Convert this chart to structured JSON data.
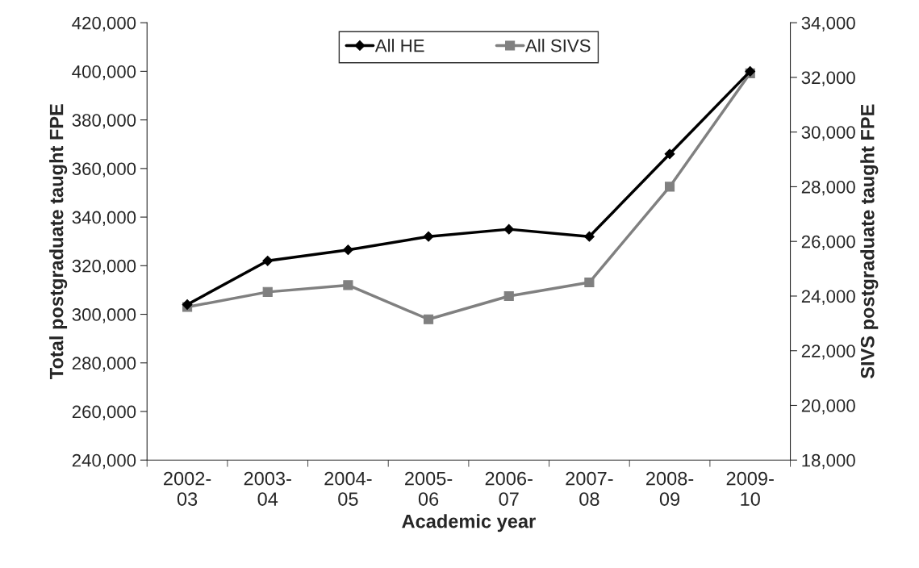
{
  "chart_data": {
    "type": "line",
    "xlabel": "Academic year",
    "ylabel": "Total postgraduate taught FPE",
    "y2label": "SIVS postgraduate taught FPE",
    "categories": [
      "2002-\n03",
      "2003-\n04",
      "2004-\n05",
      "2005-\n06",
      "2006-\n07",
      "2007-\n08",
      "2008-\n09",
      "2009-\n10"
    ],
    "series": [
      {
        "name": "All HE",
        "color": "#000000",
        "marker": "diamond",
        "values": [
          304000,
          322000,
          326500,
          332000,
          335000,
          332000,
          366000,
          400000
        ]
      },
      {
        "name": "All SIVS",
        "color": "#808080",
        "marker": "square",
        "axis": "y2",
        "values": [
          23600,
          24150,
          24400,
          23150,
          24000,
          24500,
          28000,
          32150
        ]
      }
    ],
    "ylim": [
      240000,
      420000
    ],
    "yticks": [
      {
        "value": 240000,
        "label": "240,000"
      },
      {
        "value": 260000,
        "label": "260,000"
      },
      {
        "value": 280000,
        "label": "280,000"
      },
      {
        "value": 300000,
        "label": "300,000"
      },
      {
        "value": 320000,
        "label": "320,000"
      },
      {
        "value": 340000,
        "label": "340,000"
      },
      {
        "value": 360000,
        "label": "360,000"
      },
      {
        "value": 380000,
        "label": "380,000"
      },
      {
        "value": 400000,
        "label": "400,000"
      },
      {
        "value": 420000,
        "label": "420,000"
      }
    ],
    "y2lim": [
      18000,
      34000
    ],
    "y2ticks": [
      {
        "value": 18000,
        "label": "18,000"
      },
      {
        "value": 20000,
        "label": "20,000"
      },
      {
        "value": 22000,
        "label": "22,000"
      },
      {
        "value": 24000,
        "label": "24,000"
      },
      {
        "value": 26000,
        "label": "26,000"
      },
      {
        "value": 28000,
        "label": "28,000"
      },
      {
        "value": 30000,
        "label": "30,000"
      },
      {
        "value": 32000,
        "label": "32,000"
      },
      {
        "value": 34000,
        "label": "34,000"
      }
    ],
    "grid": false,
    "legend": "top"
  }
}
